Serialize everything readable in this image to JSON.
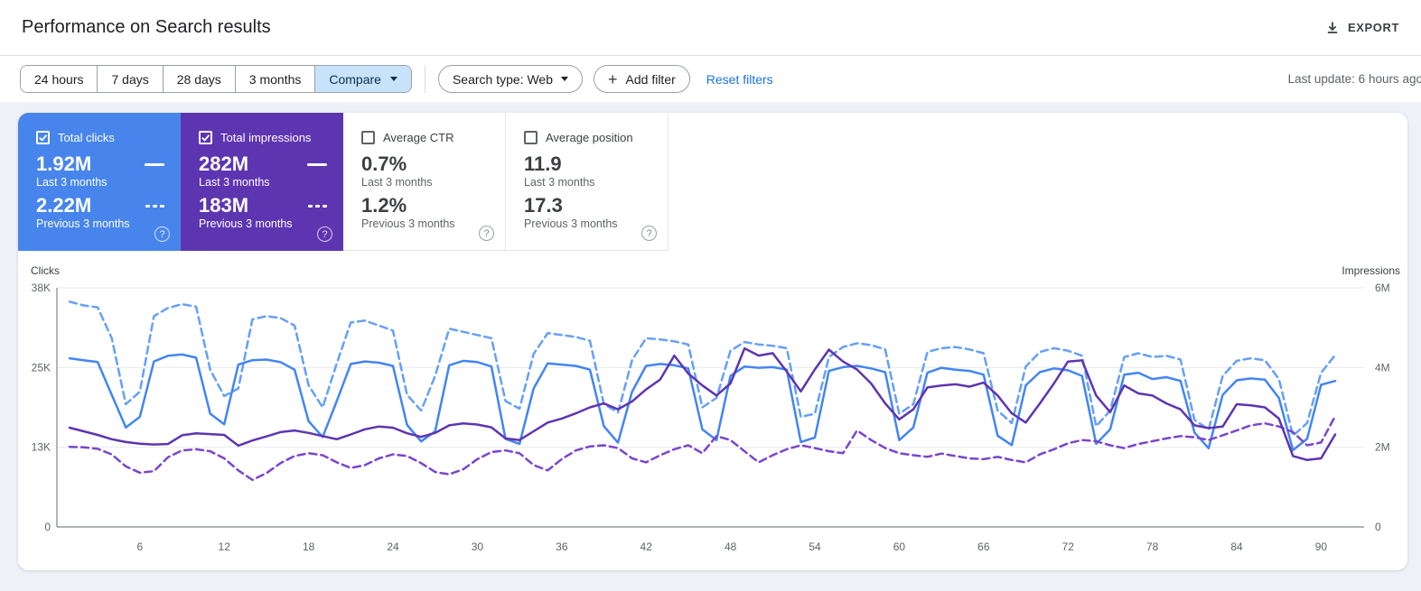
{
  "header": {
    "title": "Performance on Search results",
    "export_label": "EXPORT",
    "last_update": "Last update: 6 hours ago"
  },
  "filters": {
    "date_ranges": [
      "24 hours",
      "7 days",
      "28 days",
      "3 months"
    ],
    "compare_label": "Compare",
    "search_type": "Search type: Web",
    "add_filter": "Add filter",
    "reset_filters": "Reset filters"
  },
  "metric_cards": [
    {
      "label": "Total clicks",
      "checked": true,
      "color": "#4785ec",
      "current_value": "1.92M",
      "current_caption": "Last 3 months",
      "previous_value": "2.22M",
      "previous_caption": "Previous 3 months"
    },
    {
      "label": "Total impressions",
      "checked": true,
      "color": "#5e35b1",
      "current_value": "282M",
      "current_caption": "Last 3 months",
      "previous_value": "183M",
      "previous_caption": "Previous 3 months"
    },
    {
      "label": "Average CTR",
      "checked": false,
      "color": "#ffffff",
      "current_value": "0.7%",
      "current_caption": "Last 3 months",
      "previous_value": "1.2%",
      "previous_caption": "Previous 3 months"
    },
    {
      "label": "Average position",
      "checked": false,
      "color": "#ffffff",
      "current_value": "11.9",
      "current_caption": "Last 3 months",
      "previous_value": "17.3",
      "previous_caption": "Previous 3 months"
    }
  ],
  "chart_data": {
    "type": "line",
    "days": 91,
    "x_ticks": [
      6,
      12,
      18,
      24,
      30,
      36,
      42,
      48,
      54,
      60,
      66,
      72,
      78,
      84,
      90
    ],
    "left_axis": {
      "label": "Clicks",
      "unit": "K",
      "max": 38,
      "ticks": [
        "0",
        "13K",
        "25K",
        "38K"
      ]
    },
    "right_axis": {
      "label": "Impressions",
      "unit": "M",
      "max": 6,
      "ticks": [
        "0",
        "2M",
        "4M",
        "6M"
      ]
    },
    "grid": true,
    "series": [
      {
        "name": "Total clicks — Previous 3 months",
        "axis": "left",
        "style": "dashed",
        "color": "#66a0f6",
        "values": [
          35.8,
          35.2,
          34.9,
          30.0,
          19.5,
          21.5,
          33.5,
          34.8,
          35.4,
          35.0,
          25.0,
          20.8,
          22.0,
          33.0,
          33.5,
          33.2,
          32.0,
          22.5,
          19.0,
          26.0,
          32.5,
          32.8,
          32.0,
          31.2,
          21.0,
          18.5,
          24.0,
          31.5,
          31.0,
          30.5,
          30.0,
          20.0,
          18.8,
          27.5,
          30.8,
          30.5,
          30.2,
          29.6,
          19.5,
          18.2,
          26.5,
          30.0,
          29.8,
          29.5,
          29.0,
          19.0,
          20.5,
          28.0,
          29.4,
          29.0,
          28.8,
          28.4,
          17.5,
          18.0,
          27.0,
          28.6,
          29.2,
          28.9,
          28.2,
          18.0,
          19.5,
          27.8,
          28.4,
          28.6,
          28.2,
          27.6,
          18.5,
          16.5,
          25.5,
          27.8,
          28.4,
          28.0,
          27.2,
          16.0,
          18.5,
          27.0,
          27.6,
          27.0,
          27.2,
          26.6,
          17.0,
          15.5,
          24.0,
          26.4,
          26.8,
          26.5,
          23.5,
          14.5,
          16.5,
          24.5,
          27.3
        ]
      },
      {
        "name": "Total clicks — Last 3 months",
        "axis": "left",
        "style": "solid",
        "color": "#4285f4",
        "values": [
          26.8,
          26.5,
          26.2,
          21.0,
          15.8,
          17.5,
          26.3,
          27.2,
          27.4,
          26.9,
          18.0,
          16.3,
          25.8,
          26.5,
          26.6,
          26.2,
          25.0,
          16.8,
          14.3,
          20.0,
          25.9,
          26.3,
          26.1,
          25.6,
          16.2,
          13.6,
          15.2,
          25.7,
          26.4,
          26.2,
          25.5,
          14.0,
          13.2,
          22.0,
          26.0,
          25.8,
          25.6,
          25.0,
          16.0,
          13.4,
          21.5,
          25.6,
          25.9,
          25.7,
          25.2,
          15.5,
          13.8,
          24.0,
          25.5,
          25.3,
          25.4,
          25.0,
          13.5,
          14.2,
          24.8,
          25.4,
          25.6,
          25.2,
          24.6,
          13.8,
          15.8,
          24.5,
          25.3,
          25.0,
          24.8,
          24.2,
          14.5,
          13.0,
          22.5,
          24.6,
          25.2,
          24.9,
          24.0,
          13.2,
          15.5,
          24.2,
          24.5,
          23.5,
          23.8,
          23.2,
          15.0,
          12.5,
          21.0,
          23.3,
          23.6,
          23.4,
          20.5,
          12.2,
          14.0,
          22.6,
          23.2
        ]
      },
      {
        "name": "Total impressions — Previous 3 months",
        "axis": "right",
        "style": "dashed",
        "color": "#7a45d0",
        "values": [
          2.01,
          2.0,
          1.96,
          1.82,
          1.52,
          1.36,
          1.4,
          1.75,
          1.92,
          1.95,
          1.9,
          1.72,
          1.42,
          1.18,
          1.35,
          1.6,
          1.78,
          1.85,
          1.8,
          1.62,
          1.48,
          1.55,
          1.72,
          1.82,
          1.78,
          1.6,
          1.38,
          1.32,
          1.45,
          1.7,
          1.88,
          1.92,
          1.85,
          1.55,
          1.42,
          1.7,
          1.92,
          2.02,
          2.05,
          1.98,
          1.72,
          1.62,
          1.8,
          1.95,
          2.05,
          1.85,
          2.28,
          2.18,
          1.9,
          1.62,
          1.8,
          1.95,
          2.05,
          1.98,
          1.9,
          1.85,
          2.42,
          2.18,
          1.98,
          1.85,
          1.8,
          1.76,
          1.84,
          1.78,
          1.72,
          1.7,
          1.76,
          1.68,
          1.62,
          1.82,
          1.95,
          2.1,
          2.18,
          2.15,
          2.05,
          1.98,
          2.08,
          2.15,
          2.22,
          2.28,
          2.25,
          2.18,
          2.3,
          2.42,
          2.55,
          2.6,
          2.52,
          2.38,
          2.05,
          2.12,
          2.78
        ]
      },
      {
        "name": "Total impressions — Last 3 months",
        "axis": "right",
        "style": "solid",
        "color": "#5e35b1",
        "values": [
          2.49,
          2.4,
          2.31,
          2.2,
          2.13,
          2.09,
          2.07,
          2.08,
          2.3,
          2.35,
          2.33,
          2.31,
          2.04,
          2.17,
          2.27,
          2.38,
          2.42,
          2.36,
          2.28,
          2.2,
          2.32,
          2.45,
          2.52,
          2.49,
          2.35,
          2.26,
          2.36,
          2.55,
          2.6,
          2.57,
          2.5,
          2.22,
          2.18,
          2.4,
          2.62,
          2.72,
          2.85,
          3.0,
          3.1,
          2.95,
          3.15,
          3.45,
          3.7,
          4.3,
          3.85,
          3.55,
          3.3,
          3.6,
          4.48,
          4.3,
          4.36,
          3.9,
          3.4,
          3.95,
          4.45,
          4.15,
          3.95,
          3.6,
          3.1,
          2.7,
          2.95,
          3.5,
          3.55,
          3.58,
          3.52,
          3.62,
          3.3,
          2.85,
          2.62,
          3.1,
          3.6,
          4.15,
          4.18,
          3.3,
          2.88,
          3.55,
          3.35,
          3.3,
          3.1,
          2.95,
          2.55,
          2.48,
          2.52,
          3.08,
          3.05,
          3.0,
          2.72,
          1.78,
          1.68,
          1.72,
          2.32
        ]
      }
    ]
  }
}
